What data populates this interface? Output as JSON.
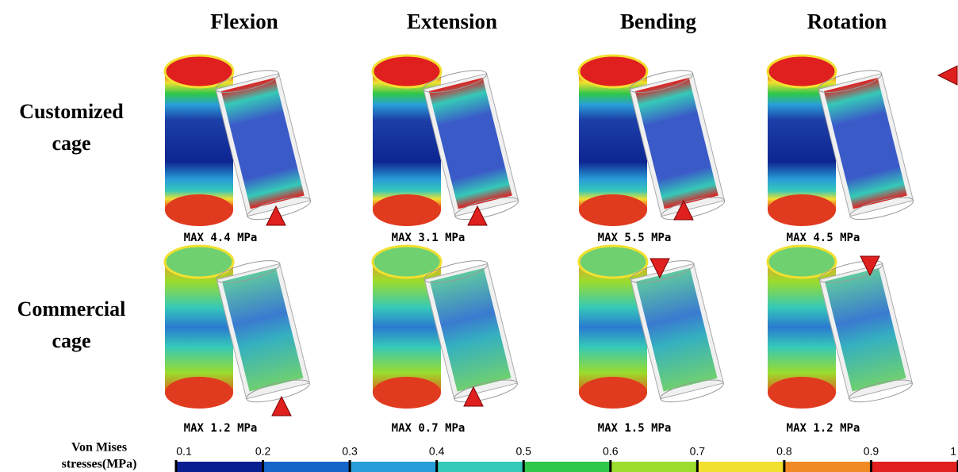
{
  "header": {
    "columns": [
      "Flexion",
      "Extension",
      "Bending",
      "Rotation"
    ]
  },
  "rows": [
    {
      "label": [
        "Customized",
        "cage"
      ],
      "max": [
        "MAX 4.4 MPa",
        "MAX 3.1 MPa",
        "MAX 5.5 MPa",
        "MAX 4.5 MPa"
      ]
    },
    {
      "label": [
        "Commercial",
        "cage"
      ],
      "max": [
        "MAX 1.2 MPa",
        "MAX 0.7 MPa",
        "MAX 1.5 MPa",
        "MAX 1.2 MPa"
      ]
    }
  ],
  "colorbar": {
    "title": [
      "Von Mises",
      "stresses(MPa)"
    ],
    "ticks": [
      0.1,
      0.2,
      0.3,
      0.4,
      0.5,
      0.6,
      0.7,
      0.8,
      0.9,
      1
    ],
    "colors": [
      "#0a1f8f",
      "#1565c8",
      "#2a9ed8",
      "#35c9b8",
      "#2fc84a",
      "#9bdc2c",
      "#f2e030",
      "#f08a24",
      "#e01f1f"
    ]
  }
}
